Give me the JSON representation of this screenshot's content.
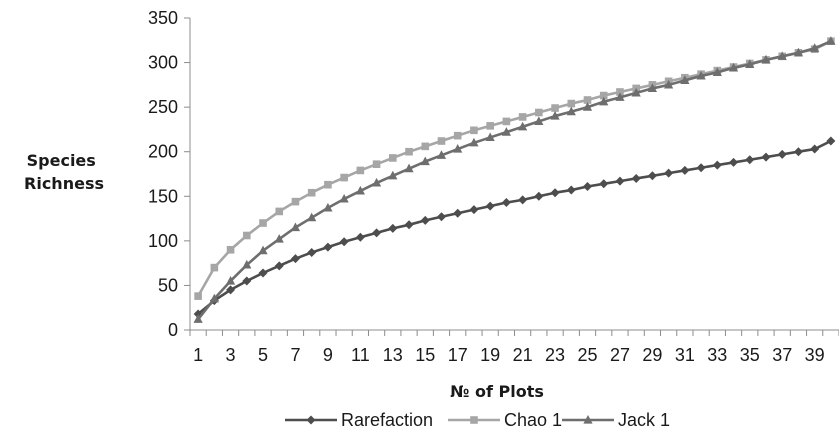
{
  "chart_data": {
    "type": "line",
    "title": "",
    "xlabel": "№ of Plots",
    "ylabel": "Species Richness",
    "ylabel_lines": [
      "Species",
      "Richness"
    ],
    "x": [
      1,
      2,
      3,
      4,
      5,
      6,
      7,
      8,
      9,
      10,
      11,
      12,
      13,
      14,
      15,
      16,
      17,
      18,
      19,
      20,
      21,
      22,
      23,
      24,
      25,
      26,
      27,
      28,
      29,
      30,
      31,
      32,
      33,
      34,
      35,
      36,
      37,
      38,
      39,
      40
    ],
    "x_tick_labels": [
      "1",
      "3",
      "5",
      "7",
      "9",
      "11",
      "13",
      "15",
      "17",
      "19",
      "21",
      "23",
      "25",
      "27",
      "29",
      "31",
      "33",
      "35",
      "37",
      "39"
    ],
    "y_tick_labels": [
      "0",
      "50",
      "100",
      "150",
      "200",
      "250",
      "300",
      "350"
    ],
    "ylim": [
      0,
      350
    ],
    "grid": false,
    "legend_position": "bottom",
    "series": [
      {
        "name": "Rarefaction",
        "color": "#4d4d4d",
        "marker": "diamond",
        "values": [
          18,
          33,
          45,
          55,
          64,
          72,
          80,
          87,
          93,
          99,
          104,
          109,
          114,
          118,
          123,
          127,
          131,
          135,
          139,
          143,
          146,
          150,
          154,
          157,
          161,
          164,
          167,
          170,
          173,
          176,
          179,
          182,
          185,
          188,
          191,
          194,
          197,
          200,
          203,
          212
        ]
      },
      {
        "name": "Chao 1",
        "color": "#a6a6a6",
        "marker": "square",
        "values": [
          38,
          70,
          90,
          106,
          120,
          133,
          144,
          154,
          163,
          171,
          179,
          186,
          193,
          200,
          206,
          212,
          218,
          224,
          229,
          234,
          239,
          244,
          249,
          254,
          258,
          263,
          267,
          271,
          275,
          279,
          283,
          287,
          291,
          295,
          299,
          303,
          307,
          311,
          315,
          324
        ]
      },
      {
        "name": "Jack 1",
        "color": "#6e6e6e",
        "marker": "triangle",
        "values": [
          12,
          35,
          55,
          73,
          89,
          102,
          115,
          126,
          137,
          147,
          156,
          165,
          173,
          181,
          189,
          196,
          203,
          210,
          216,
          222,
          228,
          234,
          240,
          245,
          250,
          256,
          261,
          266,
          271,
          275,
          280,
          285,
          289,
          294,
          298,
          303,
          307,
          311,
          316,
          324
        ]
      }
    ]
  }
}
